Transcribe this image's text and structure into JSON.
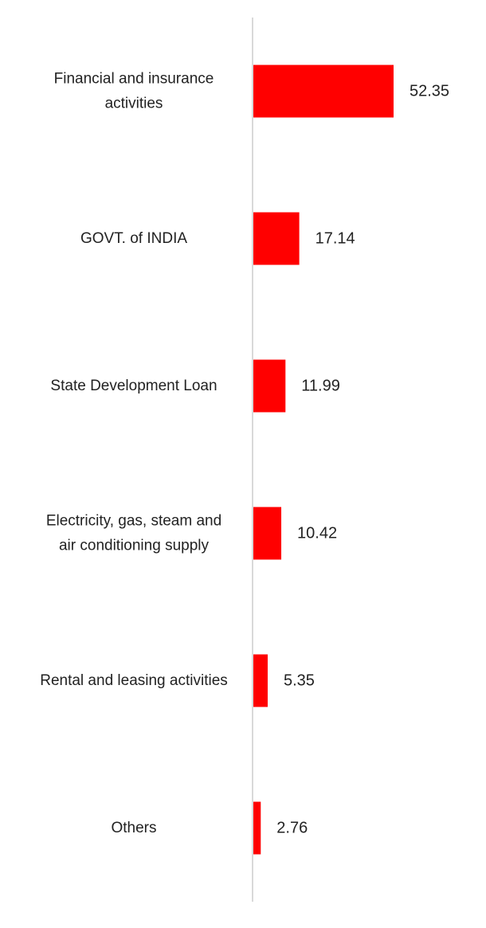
{
  "chart_data": {
    "type": "bar",
    "orientation": "horizontal",
    "categories": [
      [
        "Financial and insurance",
        "activities"
      ],
      [
        "GOVT. of INDIA"
      ],
      [
        "State Development Loan"
      ],
      [
        "Electricity, gas, steam and",
        "air conditioning supply"
      ],
      [
        "Rental and leasing activities"
      ],
      [
        "Others"
      ]
    ],
    "values": [
      52.35,
      17.14,
      11.99,
      10.42,
      5.35,
      2.76
    ],
    "value_labels": [
      "52.35",
      "17.14",
      "11.99",
      "10.42",
      "5.35",
      "2.76"
    ],
    "title": "",
    "xlabel": "",
    "ylabel": "",
    "grid": false,
    "legend": "none",
    "colors": {
      "bar": "#ff0000",
      "axis": "#d9d9d9",
      "text": "#222222"
    }
  }
}
